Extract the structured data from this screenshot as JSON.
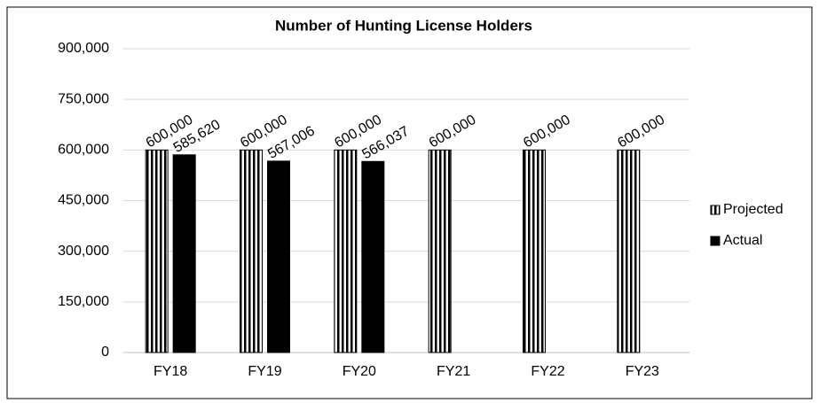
{
  "chart_data": {
    "type": "bar",
    "title": "Number of Hunting License Holders",
    "categories": [
      "FY18",
      "FY19",
      "FY20",
      "FY21",
      "FY22",
      "FY23"
    ],
    "series": [
      {
        "name": "Projected",
        "color": "#000000",
        "pattern": "vertical-stripes",
        "values": [
          600000,
          600000,
          600000,
          600000,
          600000,
          600000
        ],
        "value_labels": [
          "600,000",
          "600,000",
          "600,000",
          "600,000",
          "600,000",
          "600,000"
        ]
      },
      {
        "name": "Actual",
        "color": "#000000",
        "values": [
          585620,
          567006,
          566037,
          null,
          null,
          null
        ],
        "value_labels": [
          "585,620",
          "567,006",
          "566,037",
          null,
          null,
          null
        ]
      }
    ],
    "ylim": [
      0,
      900000
    ],
    "yticks": [
      0,
      {
        "value": 150000,
        "label": "150,000"
      },
      {
        "value": 300000,
        "label": "300,000"
      },
      {
        "value": 450000,
        "label": "450,000"
      },
      {
        "value": 600000,
        "label": "600,000"
      },
      {
        "value": 750000,
        "label": "750,000"
      },
      {
        "value": 900000,
        "label": "900,000"
      }
    ],
    "grid": true,
    "legend": "right"
  }
}
